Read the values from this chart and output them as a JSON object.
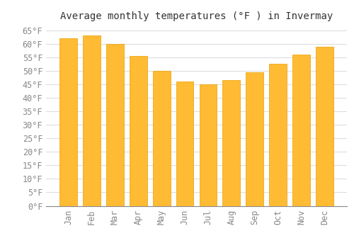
{
  "title": "Average monthly temperatures (°F ) in Invermay",
  "months": [
    "Jan",
    "Feb",
    "Mar",
    "Apr",
    "May",
    "Jun",
    "Jul",
    "Aug",
    "Sep",
    "Oct",
    "Nov",
    "Dec"
  ],
  "values": [
    62,
    63,
    60,
    55.5,
    50,
    46,
    45,
    46.5,
    49.5,
    52.5,
    56,
    59
  ],
  "bar_color": "#FFBB33",
  "bar_edge_color": "#E8A000",
  "background_color": "#FFFFFF",
  "grid_color": "#DDDDDD",
  "ylim": [
    0,
    67
  ],
  "yticks": [
    0,
    5,
    10,
    15,
    20,
    25,
    30,
    35,
    40,
    45,
    50,
    55,
    60,
    65
  ],
  "title_fontsize": 10,
  "tick_fontsize": 8.5,
  "font_family": "monospace"
}
